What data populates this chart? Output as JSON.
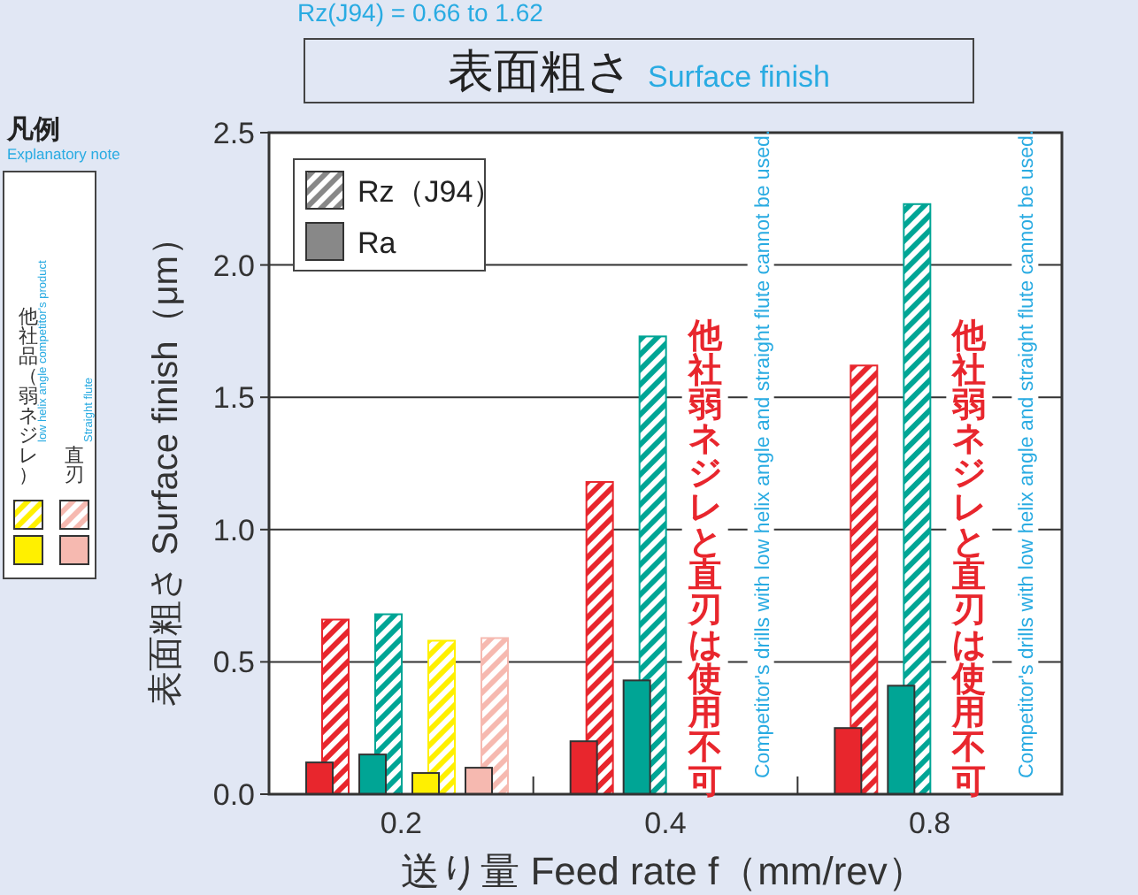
{
  "chart_data": {
    "type": "bar",
    "title": "表面粗さ",
    "subtitle": "Surface finish",
    "xlabel": "送り量 Feed rate f（mm/rev）",
    "ylabel": "表面粗さ Surface finish（μm）",
    "categories": [
      "0.2",
      "0.4",
      "0.8"
    ],
    "ylim": [
      0,
      2.5
    ],
    "yticks": [
      {
        "value": 0,
        "label": "0.0"
      },
      {
        "value": 0.5,
        "label": "0.5"
      },
      {
        "value": 1,
        "label": "1.0"
      },
      {
        "value": 1.5,
        "label": "1.5"
      },
      {
        "value": 2,
        "label": "2.0"
      },
      {
        "value": 2.5,
        "label": "2.5"
      }
    ],
    "grid": "y",
    "series": [
      {
        "color": "#e8262d",
        "values": [
          0.66,
          1.18,
          1.62
        ]
      },
      {
        "color": "#e8262d",
        "values": [
          0.12,
          0.2,
          0.25
        ]
      },
      {
        "color": "#00a595",
        "values": [
          0.68,
          1.73,
          2.23
        ]
      },
      {
        "color": "#00a595",
        "values": [
          0.15,
          0.43,
          0.41
        ]
      },
      {
        "color": "#fff000",
        "values": [
          0.58,
          null,
          null
        ]
      },
      {
        "color": "#fff000",
        "values": [
          0.08,
          null,
          null
        ]
      },
      {
        "color": "#f6b9b0",
        "values": [
          0.59,
          null,
          null
        ]
      },
      {
        "color": "#f6b9b0",
        "values": [
          0.1,
          null,
          null
        ]
      }
    ],
    "annotations": [
      "Rz(J94) = 0.66 to 1.62",
      "他社弱ネジレと直刃は使用不可",
      "Competitor's drills with low helix angle and straight flute cannot be used.",
      "他社弱ネジレと直刃は使用不可",
      "Competitor's drills with low helix angle and straight flute cannot be used.",
      "凡例",
      "Explanatory note",
      "他社品（弱ネジレ）",
      "low helix angle competitor's product",
      "直刃",
      "Straight flute",
      "Rz（J94）",
      "Ra"
    ]
  }
}
